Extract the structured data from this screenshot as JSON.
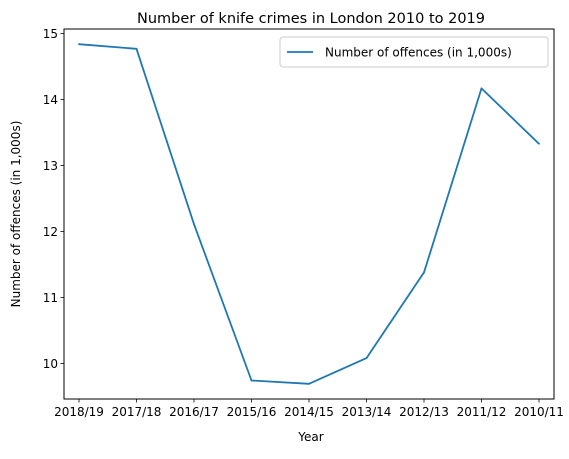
{
  "chart_data": {
    "type": "line",
    "title": "Number of knife crimes in London 2010 to 2019",
    "xlabel": "Year",
    "ylabel": "Number of offences (in 1,000s)",
    "categories": [
      "2018/19",
      "2017/18",
      "2016/17",
      "2015/16",
      "2014/15",
      "2013/14",
      "2012/13",
      "2011/12",
      "2010/11"
    ],
    "series": [
      {
        "name": "Number of offences (in 1,000s)",
        "values": [
          14.84,
          14.77,
          12.11,
          9.74,
          9.69,
          10.08,
          11.38,
          14.17,
          13.33
        ],
        "color": "#1f77b4"
      }
    ],
    "ylim": [
      9.46,
      15.07
    ],
    "yticks": [
      10,
      11,
      12,
      13,
      14,
      15
    ],
    "legend_position": "upper right",
    "grid": false
  }
}
